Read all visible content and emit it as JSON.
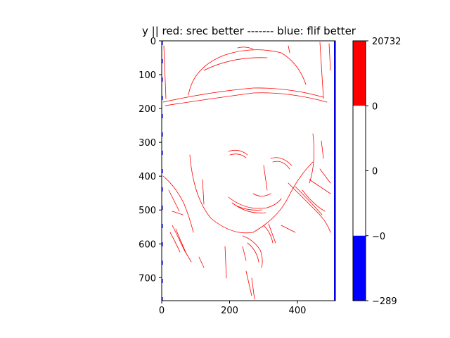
{
  "chart_data": {
    "type": "heatmap",
    "title": "y || red: srec better ------- blue: flif better",
    "xlabel": "",
    "ylabel": "",
    "xlim": [
      0,
      512
    ],
    "ylim": [
      768,
      0
    ],
    "x_ticks": [
      0,
      200,
      400
    ],
    "y_ticks": [
      0,
      100,
      200,
      300,
      400,
      500,
      600,
      700
    ],
    "x_tick_labels": [
      "0",
      "200",
      "400"
    ],
    "y_tick_labels": [
      "0",
      "100",
      "200",
      "300",
      "400",
      "500",
      "600",
      "700"
    ],
    "grid": false,
    "colormap": {
      "colors": [
        "#0000ff",
        "#ffffff",
        "#ff0000"
      ],
      "boundaries": [
        -289,
        0,
        0,
        20732
      ],
      "tick_labels": [
        "20732",
        "0",
        "0",
        "−0",
        "−289"
      ]
    },
    "content": "edge-difference map of a face image (mostly red sparse edge pixels on white, thin blue borders left/right)"
  }
}
